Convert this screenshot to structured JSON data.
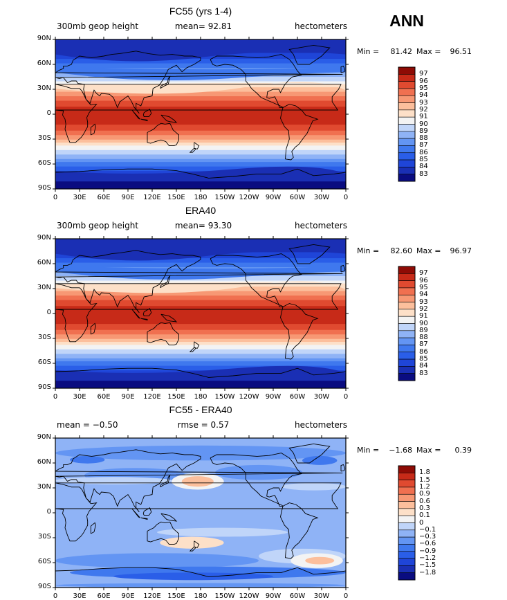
{
  "main_title": "ANN",
  "x_ticks": [
    "0",
    "30E",
    "60E",
    "90E",
    "120E",
    "150E",
    "180",
    "150W",
    "120W",
    "90W",
    "60W",
    "30W",
    "0"
  ],
  "y_ticks": [
    "90N",
    "60N",
    "30N",
    "0",
    "30S",
    "60S",
    "90S"
  ],
  "panels": [
    {
      "title": "FC55 (yrs 1-4)",
      "left_label": "300mb geop height",
      "center_label": "mean=  92.81",
      "right_label": "hectometers",
      "min_label": "Min =",
      "min_value": "81.42",
      "max_label": "Max =",
      "max_value": "96.51",
      "colorbar_labels": [
        "97",
        "96",
        "95",
        "94",
        "93",
        "92",
        "91",
        "90",
        "89",
        "88",
        "87",
        "86",
        "85",
        "84",
        "83"
      ]
    },
    {
      "title": "ERA40",
      "left_label": "300mb geop height",
      "center_label": "mean=  93.30",
      "right_label": "hectometers",
      "min_label": "Min =",
      "min_value": "82.60",
      "max_label": "Max =",
      "max_value": "96.97",
      "colorbar_labels": [
        "97",
        "96",
        "95",
        "94",
        "93",
        "92",
        "91",
        "90",
        "89",
        "88",
        "87",
        "86",
        "85",
        "84",
        "83"
      ]
    },
    {
      "title": "FC55 - ERA40",
      "left_label": "mean =  −0.50",
      "center_label": "rmse =   0.57",
      "right_label": "hectometers",
      "min_label": "Min =",
      "min_value": "−1.68",
      "max_label": "Max =",
      "max_value": "0.39",
      "colorbar_labels": [
        "1.8",
        "1.5",
        "1.2",
        "0.9",
        "0.6",
        "0.3",
        "0.1",
        "0",
        "−0.1",
        "−0.3",
        "−0.6",
        "−0.9",
        "−1.2",
        "−1.5",
        "−1.8"
      ]
    }
  ],
  "colors": {
    "scale": [
      "#0a0c80",
      "#1a2fb4",
      "#1f45d8",
      "#2a5ee8",
      "#3f78ee",
      "#6395f3",
      "#8fb3f6",
      "#c0d5f9",
      "#f3f3f3",
      "#fde0c8",
      "#fcbf9c",
      "#f79874",
      "#f07050",
      "#e04a30",
      "#c72a18",
      "#8e0b05"
    ]
  }
}
